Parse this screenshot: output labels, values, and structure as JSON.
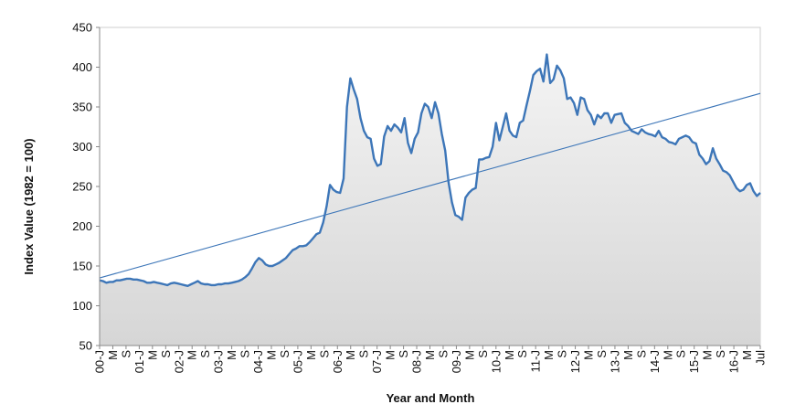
{
  "chart_data": {
    "type": "area",
    "title": "",
    "xlabel": "Year and Month",
    "ylabel": "Index Value (1982 = 100)",
    "ylim": [
      50,
      450
    ],
    "yticks": [
      50,
      100,
      150,
      200,
      250,
      300,
      350,
      400,
      450
    ],
    "grid": false,
    "legend": "none",
    "x_tick_labels": [
      "00-J",
      "M",
      "S",
      "01-J",
      "M",
      "S",
      "02-J",
      "M",
      "S",
      "03-J",
      "M",
      "S",
      "04-J",
      "M",
      "S",
      "05-J",
      "M",
      "S",
      "06-J",
      "M",
      "S",
      "07-J",
      "M",
      "S",
      "08-J",
      "M",
      "S",
      "09-J",
      "M",
      "S",
      "10-J",
      "M",
      "S",
      "11-J",
      "M",
      "S",
      "12-J",
      "M",
      "S",
      "13-J",
      "M",
      "S",
      "14-J",
      "M",
      "S",
      "15-J",
      "M",
      "S",
      "16-J",
      "M",
      "Jul"
    ],
    "series": [
      {
        "name": "",
        "color": "#3d76b8",
        "values": [
          132,
          131,
          129,
          130,
          130,
          132,
          132,
          133,
          134,
          134,
          133,
          133,
          132,
          131,
          129,
          129,
          130,
          129,
          128,
          127,
          126,
          128,
          129,
          128,
          127,
          126,
          125,
          127,
          129,
          131,
          128,
          127,
          127,
          126,
          126,
          127,
          127,
          128,
          128,
          129,
          130,
          131,
          133,
          136,
          140,
          147,
          155,
          160,
          157,
          152,
          150,
          150,
          152,
          154,
          157,
          160,
          165,
          170,
          172,
          175,
          175,
          176,
          180,
          185,
          190,
          192,
          205,
          225,
          252,
          246,
          243,
          242,
          260,
          350,
          386,
          372,
          360,
          336,
          320,
          312,
          310,
          285,
          276,
          278,
          313,
          326,
          320,
          328,
          324,
          318,
          336,
          305,
          292,
          310,
          318,
          342,
          354,
          350,
          336,
          356,
          342,
          316,
          295,
          255,
          230,
          214,
          212,
          208,
          236,
          242,
          246,
          248,
          284,
          284,
          286,
          287,
          300,
          330,
          308,
          325,
          342,
          320,
          314,
          312,
          330,
          333,
          352,
          370,
          390,
          395,
          398,
          382,
          416,
          380,
          385,
          402,
          396,
          386,
          360,
          362,
          355,
          340,
          362,
          360,
          346,
          340,
          328,
          340,
          336,
          342,
          342,
          330,
          340,
          341,
          342,
          330,
          326,
          320,
          318,
          316,
          322,
          318,
          316,
          315,
          313,
          320,
          312,
          310,
          306,
          305,
          303,
          310,
          312,
          314,
          312,
          306,
          304,
          290,
          285,
          278,
          282,
          298,
          285,
          278,
          270,
          268,
          264,
          256,
          248,
          244,
          246,
          252,
          254,
          244,
          238,
          242
        ]
      }
    ],
    "trendline": {
      "start": 135,
      "end": 367,
      "color": "#3d76b8"
    },
    "area_fill": "#e6e6e6"
  }
}
